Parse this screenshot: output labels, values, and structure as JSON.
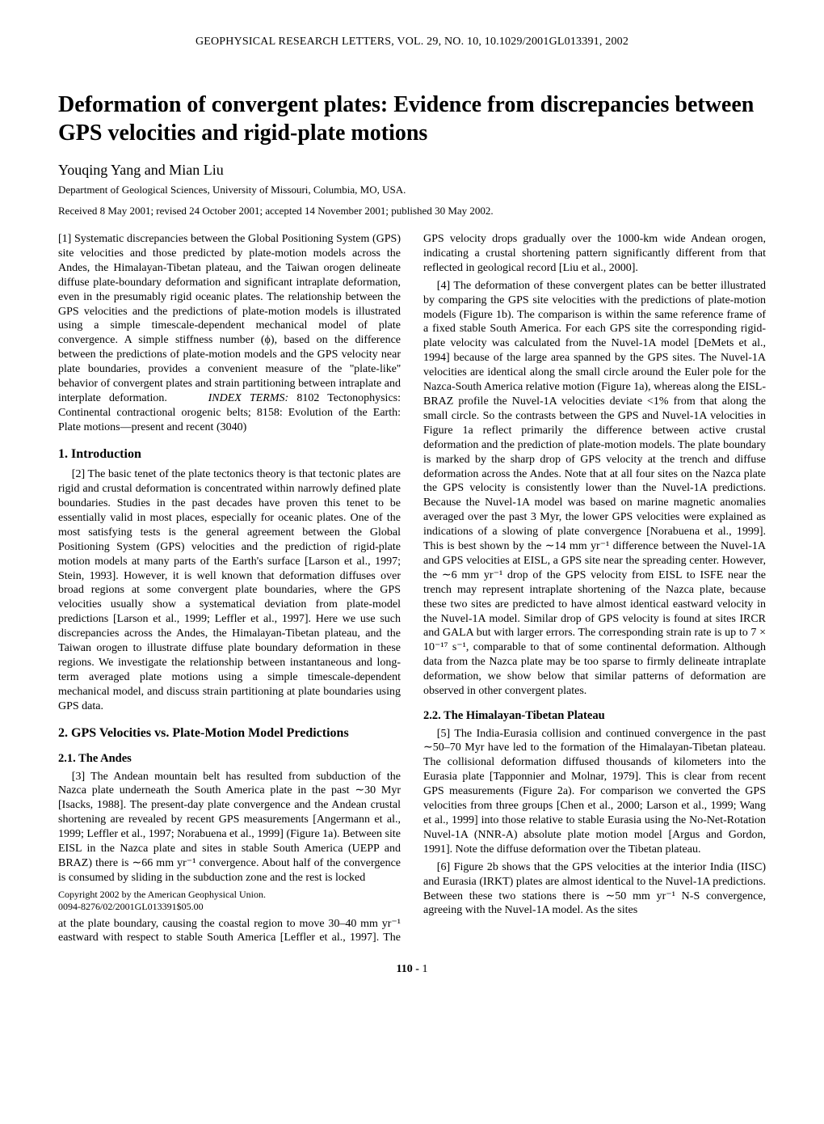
{
  "running_header": "GEOPHYSICAL RESEARCH LETTERS, VOL. 29, NO. 10, 10.1029/2001GL013391, 2002",
  "title": "Deformation of convergent plates: Evidence from discrepancies between GPS velocities and rigid-plate motions",
  "authors": "Youqing Yang and Mian Liu",
  "affiliation": "Department of Geological Sciences, University of Missouri, Columbia, MO, USA.",
  "dates": "Received 8 May 2001; revised 24 October 2001; accepted 14 November 2001; published 30 May 2002.",
  "abstract": "[1]  Systematic discrepancies between the Global Positioning System (GPS) site velocities and those predicted by plate-motion models across the Andes, the Himalayan-Tibetan plateau, and the Taiwan orogen delineate diffuse plate-boundary deformation and significant intraplate deformation, even in the presumably rigid oceanic plates. The relationship between the GPS velocities and the predictions of plate-motion models is illustrated using a simple timescale-dependent mechanical model of plate convergence. A simple stiffness number (ϕ), based on the difference between the predictions of plate-motion models and the GPS velocity near plate boundaries, provides a convenient measure of the ''plate-like'' behavior of convergent plates and strain partitioning between intraplate and interplate deformation.",
  "index_terms_label": "INDEX TERMS:",
  "index_terms": " 8102 Tectonophysics: Continental contractional orogenic belts; 8158: Evolution of the Earth: Plate motions—present and recent (3040)",
  "sec1_title": "1.   Introduction",
  "sec1_p1": "[2]  The basic tenet of the plate tectonics theory is that tectonic plates are rigid and crustal deformation is concentrated within narrowly defined plate boundaries. Studies in the past decades have proven this tenet to be essentially valid in most places, especially for oceanic plates. One of the most satisfying tests is the general agreement between the Global Positioning System (GPS) velocities and the prediction of rigid-plate motion models at many parts of the Earth's surface [Larson et al., 1997; Stein, 1993]. However, it is well known that deformation diffuses over broad regions at some convergent plate boundaries, where the GPS velocities usually show a systematical deviation from plate-model predictions [Larson et al., 1999; Leffler et al., 1997]. Here we use such discrepancies across the Andes, the Himalayan-Tibetan plateau, and the Taiwan orogen to illustrate diffuse plate boundary deformation in these regions. We investigate the relationship between instantaneous and long-term averaged plate motions using a simple timescale-dependent mechanical model, and discuss strain partitioning at plate boundaries using GPS data.",
  "sec2_title": "2.   GPS Velocities vs. Plate-Motion Model Predictions",
  "sec21_title": "2.1.   The Andes",
  "sec21_p1": "[3]  The Andean mountain belt has resulted from subduction of the Nazca plate underneath the South America plate in the past ∼30 Myr [Isacks, 1988]. The present-day plate convergence and the Andean crustal shortening are revealed by recent GPS measurements [Angermann et al., 1999; Leffler et al., 1997; Norabuena et al., 1999] (Figure 1a). Between site EISL in the Nazca plate and sites in stable South America (UEPP and BRAZ) there is ∼66 mm yr⁻¹ convergence. About half of the convergence is consumed by sliding in the subduction zone and the rest is locked",
  "copyright_line1": "Copyright 2002 by the American Geophysical Union.",
  "copyright_line2": "0094-8276/02/2001GL013391$05.00",
  "col2_p1": "at the plate boundary, causing the coastal region to move 30–40 mm yr⁻¹ eastward with respect to stable South America [Leffler et al., 1997]. The GPS velocity drops gradually over the 1000-km wide Andean orogen, indicating a crustal shortening pattern significantly different from that reflected in geological record [Liu et al., 2000].",
  "col2_p2": "[4]  The deformation of these convergent plates can be better illustrated by comparing the GPS site velocities with the predictions of plate-motion models (Figure 1b). The comparison is within the same reference frame of a fixed stable South America. For each GPS site the corresponding rigid-plate velocity was calculated from the Nuvel-1A model [DeMets et al., 1994] because of the large area spanned by the GPS sites. The Nuvel-1A velocities are identical along the small circle around the Euler pole for the Nazca-South America relative motion (Figure 1a), whereas along the EISL-BRAZ profile the Nuvel-1A velocities deviate <1% from that along the small circle. So the contrasts between the GPS and Nuvel-1A velocities in Figure 1a reflect primarily the difference between active crustal deformation and the prediction of plate-motion models. The plate boundary is marked by the sharp drop of GPS velocity at the trench and diffuse deformation across the Andes. Note that at all four sites on the Nazca plate the GPS velocity is consistently lower than the Nuvel-1A predictions. Because the Nuvel-1A model was based on marine magnetic anomalies averaged over the past 3 Myr, the lower GPS velocities were explained as indications of a slowing of plate convergence [Norabuena et al., 1999]. This is best shown by the ∼14 mm yr⁻¹ difference between the Nuvel-1A and GPS velocities at EISL, a GPS site near the spreading center. However, the ∼6 mm yr⁻¹ drop of the GPS velocity from EISL to ISFE near the trench may represent intraplate shortening of the Nazca plate, because these two sites are predicted to have almost identical eastward velocity in the Nuvel-1A model. Similar drop of GPS velocity is found at sites IRCR and GALA but with larger errors. The corresponding strain rate is up to 7 × 10⁻¹⁷ s⁻¹, comparable to that of some continental deformation. Although data from the Nazca plate may be too sparse to firmly delineate intraplate deformation, we show below that similar patterns of deformation are observed in other convergent plates.",
  "sec22_title": "2.2.   The Himalayan-Tibetan Plateau",
  "sec22_p1": "[5]  The India-Eurasia collision and continued convergence in the past ∼50–70 Myr have led to the formation of the Himalayan-Tibetan plateau. The collisional deformation diffused thousands of kilometers into the Eurasia plate [Tapponnier and Molnar, 1979]. This is clear from recent GPS measurements (Figure 2a). For comparison we converted the GPS velocities from three groups [Chen et al., 2000; Larson et al., 1999; Wang et al., 1999] into those relative to stable Eurasia using the No-Net-Rotation Nuvel-1A (NNR-A) absolute plate motion model [Argus and Gordon, 1991]. Note the diffuse deformation over the Tibetan plateau.",
  "sec22_p2": "[6]  Figure 2b shows that the GPS velocities at the interior India (IISC) and Eurasia (IRKT) plates are almost identical to the Nuvel-1A predictions. Between these two stations there is ∼50 mm yr⁻¹ N-S convergence, agreeing with the Nuvel-1A model. As the sites",
  "page_number_prefix": "110 - ",
  "page_number": "1"
}
